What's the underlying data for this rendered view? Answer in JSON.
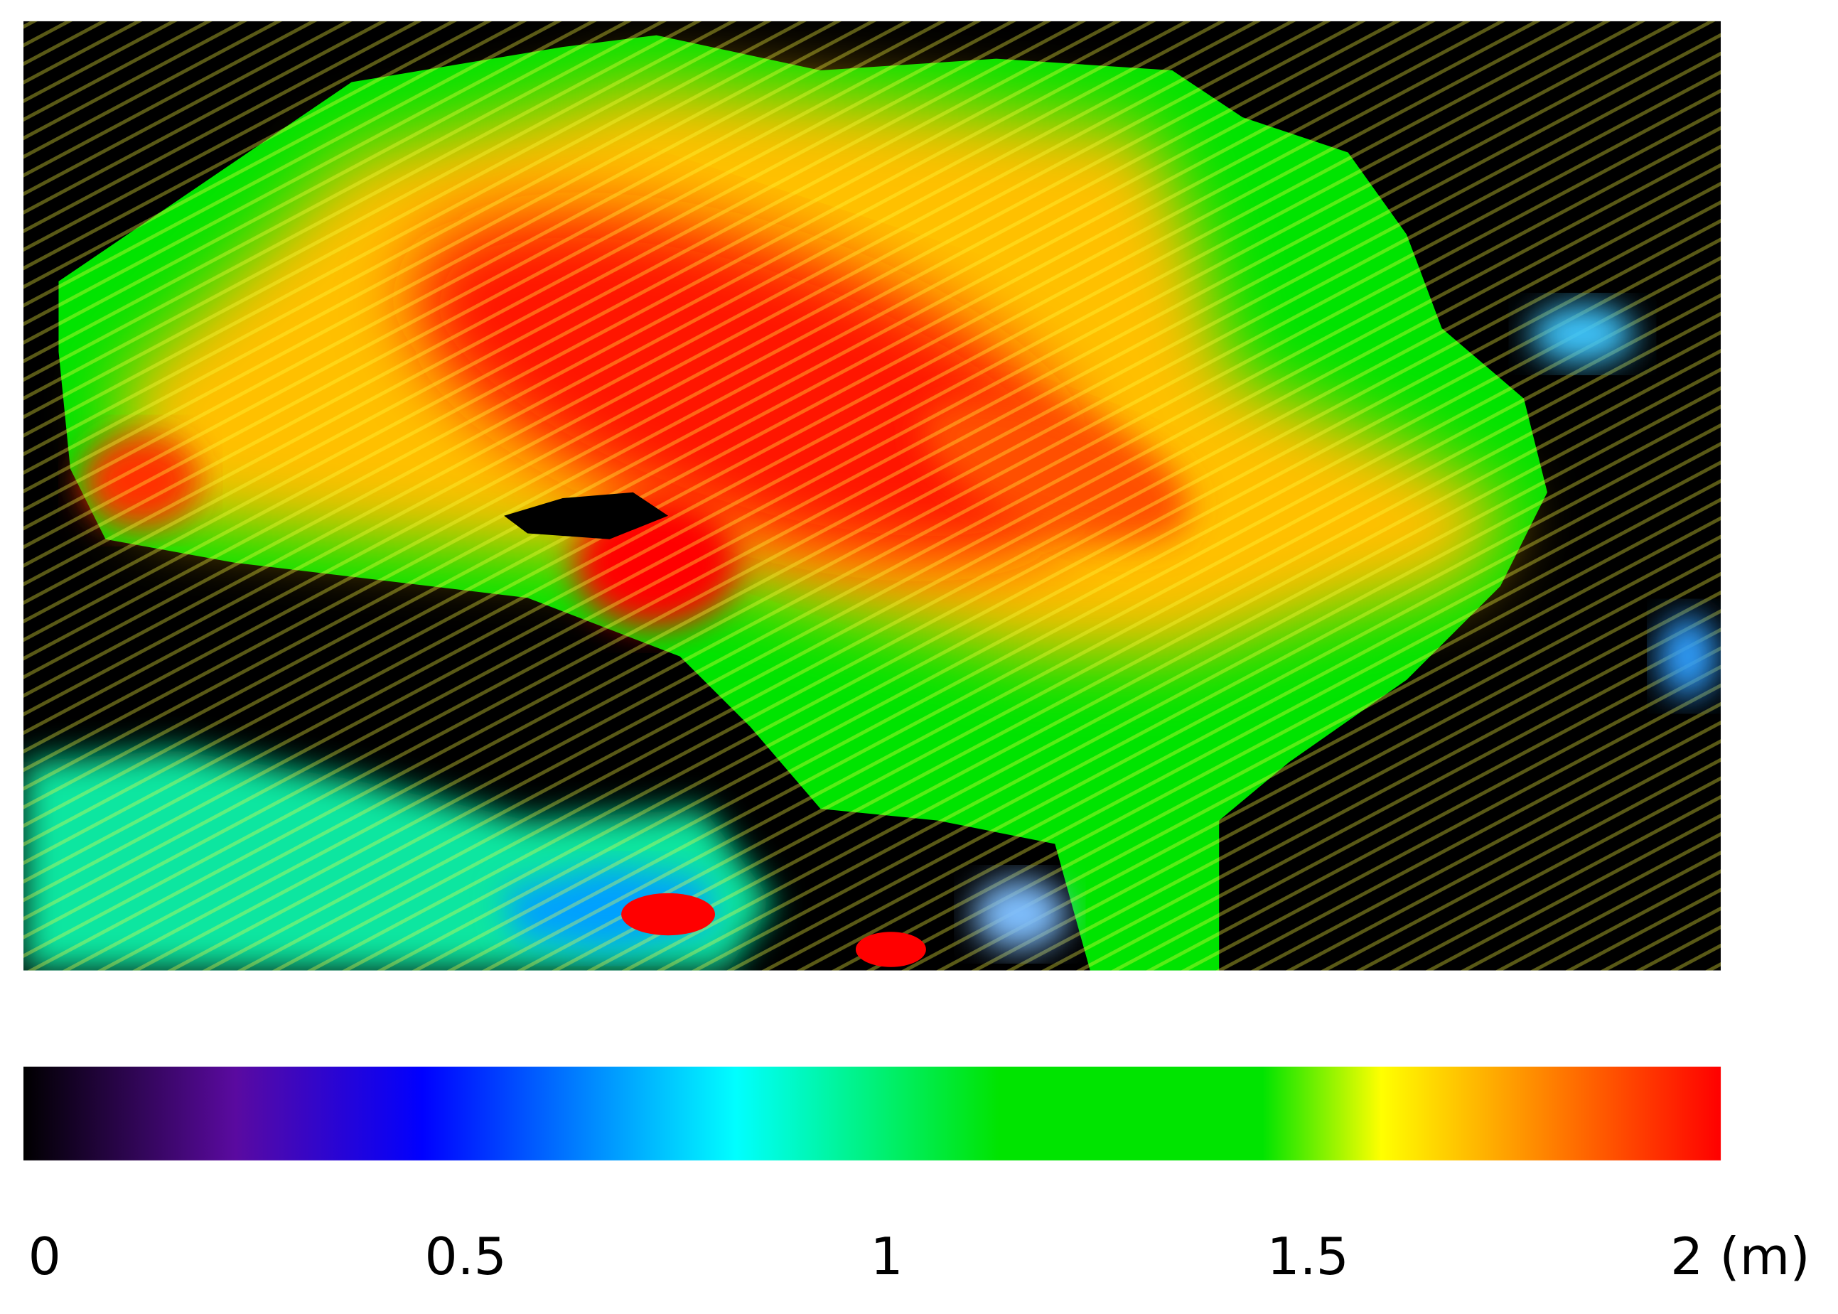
{
  "chart_data": {
    "type": "heatmap",
    "xlim": [
      0,
      2
    ],
    "xticks": [
      0,
      0.5,
      1,
      1.5,
      {
        "value": 2,
        "label": "2 (m)"
      }
    ],
    "colormap": [
      {
        "value": 0,
        "color": "#000000"
      },
      {
        "value": 0.25,
        "color": "#5a0aa0"
      },
      {
        "value": 0.47,
        "color": "#0000ff"
      },
      {
        "value": 0.84,
        "color": "#00ffff"
      },
      {
        "value": 1.15,
        "color": "#00e400"
      },
      {
        "value": 1.46,
        "color": "#00e400"
      },
      {
        "value": 1.6,
        "color": "#ffff00"
      },
      {
        "value": 2,
        "color": "#ff0000"
      }
    ]
  }
}
